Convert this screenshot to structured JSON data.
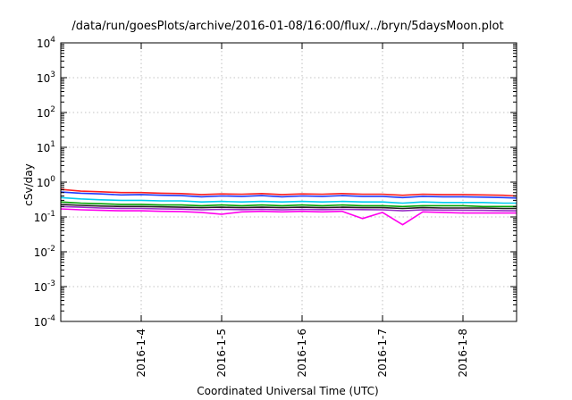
{
  "chart_data": {
    "type": "line",
    "title": "/data/run/goesPlots/archive/2016-01-08/16:00/flux/../bryn/5daysMoon.plot",
    "xlabel": "Coordinated Universal Time (UTC)",
    "ylabel": "cSv/day",
    "yscale": "log",
    "ylim": [
      0.0001,
      10000
    ],
    "y_ticks": [
      {
        "base": "10",
        "exp": "-4",
        "value": 0.0001
      },
      {
        "base": "10",
        "exp": "-3",
        "value": 0.001
      },
      {
        "base": "10",
        "exp": "-2",
        "value": 0.01
      },
      {
        "base": "10",
        "exp": "-1",
        "value": 0.1
      },
      {
        "base": "10",
        "exp": "0",
        "value": 1
      },
      {
        "base": "10",
        "exp": "1",
        "value": 10
      },
      {
        "base": "10",
        "exp": "2",
        "value": 100
      },
      {
        "base": "10",
        "exp": "3",
        "value": 1000
      },
      {
        "base": "10",
        "exp": "4",
        "value": 10000
      }
    ],
    "xlim": [
      "2016-01-03T00:00",
      "2016-01-08T16:00"
    ],
    "x_ticks": [
      "2016-1-4",
      "2016-1-5",
      "2016-1-6",
      "2016-1-7",
      "2016-1-8"
    ],
    "x_tick_values": [
      "2016-01-04T00:00",
      "2016-01-05T00:00",
      "2016-01-06T00:00",
      "2016-01-07T00:00",
      "2016-01-08T00:00"
    ],
    "grid": true,
    "series": [
      {
        "color": "#ff2020",
        "x": [
          "2016-01-03T00:00",
          "2016-01-03T06:00",
          "2016-01-03T12:00",
          "2016-01-03T18:00",
          "2016-01-04T00:00",
          "2016-01-04T06:00",
          "2016-01-04T12:00",
          "2016-01-04T18:00",
          "2016-01-05T00:00",
          "2016-01-05T06:00",
          "2016-01-05T12:00",
          "2016-01-05T18:00",
          "2016-01-06T00:00",
          "2016-01-06T06:00",
          "2016-01-06T12:00",
          "2016-01-06T18:00",
          "2016-01-07T00:00",
          "2016-01-07T06:00",
          "2016-01-07T12:00",
          "2016-01-07T18:00",
          "2016-01-08T00:00",
          "2016-01-08T06:00",
          "2016-01-08T12:00",
          "2016-01-08T16:00"
        ],
        "y": [
          0.62,
          0.55,
          0.53,
          0.5,
          0.5,
          0.48,
          0.47,
          0.44,
          0.46,
          0.45,
          0.47,
          0.44,
          0.46,
          0.45,
          0.47,
          0.45,
          0.45,
          0.42,
          0.45,
          0.44,
          0.44,
          0.43,
          0.42,
          0.4
        ]
      },
      {
        "color": "#1f3cff",
        "x": [
          "2016-01-03T00:00",
          "2016-01-03T06:00",
          "2016-01-03T12:00",
          "2016-01-03T18:00",
          "2016-01-04T00:00",
          "2016-01-04T06:00",
          "2016-01-04T12:00",
          "2016-01-04T18:00",
          "2016-01-05T00:00",
          "2016-01-05T06:00",
          "2016-01-05T12:00",
          "2016-01-05T18:00",
          "2016-01-06T00:00",
          "2016-01-06T06:00",
          "2016-01-06T12:00",
          "2016-01-06T18:00",
          "2016-01-07T00:00",
          "2016-01-07T06:00",
          "2016-01-07T12:00",
          "2016-01-07T18:00",
          "2016-01-08T00:00",
          "2016-01-08T06:00",
          "2016-01-08T12:00",
          "2016-01-08T16:00"
        ],
        "y": [
          0.52,
          0.48,
          0.46,
          0.43,
          0.44,
          0.42,
          0.41,
          0.38,
          0.4,
          0.39,
          0.41,
          0.38,
          0.4,
          0.39,
          0.41,
          0.39,
          0.39,
          0.36,
          0.39,
          0.38,
          0.38,
          0.37,
          0.36,
          0.35
        ]
      },
      {
        "color": "#00ccee",
        "x": [
          "2016-01-03T00:00",
          "2016-01-03T06:00",
          "2016-01-03T12:00",
          "2016-01-03T18:00",
          "2016-01-04T00:00",
          "2016-01-04T06:00",
          "2016-01-04T12:00",
          "2016-01-04T18:00",
          "2016-01-05T00:00",
          "2016-01-05T06:00",
          "2016-01-05T12:00",
          "2016-01-05T18:00",
          "2016-01-06T00:00",
          "2016-01-06T06:00",
          "2016-01-06T12:00",
          "2016-01-06T18:00",
          "2016-01-07T00:00",
          "2016-01-07T06:00",
          "2016-01-07T12:00",
          "2016-01-07T18:00",
          "2016-01-08T00:00",
          "2016-01-08T06:00",
          "2016-01-08T12:00",
          "2016-01-08T16:00"
        ],
        "y": [
          0.36,
          0.33,
          0.31,
          0.3,
          0.3,
          0.29,
          0.29,
          0.27,
          0.28,
          0.27,
          0.28,
          0.27,
          0.28,
          0.27,
          0.28,
          0.27,
          0.27,
          0.25,
          0.27,
          0.26,
          0.26,
          0.26,
          0.25,
          0.25
        ]
      },
      {
        "color": "#00a000",
        "x": [
          "2016-01-03T00:00",
          "2016-01-03T06:00",
          "2016-01-03T12:00",
          "2016-01-03T18:00",
          "2016-01-04T00:00",
          "2016-01-04T06:00",
          "2016-01-04T12:00",
          "2016-01-04T18:00",
          "2016-01-05T00:00",
          "2016-01-05T06:00",
          "2016-01-05T12:00",
          "2016-01-05T18:00",
          "2016-01-06T00:00",
          "2016-01-06T06:00",
          "2016-01-06T12:00",
          "2016-01-06T18:00",
          "2016-01-07T00:00",
          "2016-01-07T06:00",
          "2016-01-07T12:00",
          "2016-01-07T18:00",
          "2016-01-08T00:00",
          "2016-01-08T06:00",
          "2016-01-08T12:00",
          "2016-01-08T16:00"
        ],
        "y": [
          0.27,
          0.25,
          0.24,
          0.23,
          0.23,
          0.22,
          0.22,
          0.21,
          0.22,
          0.21,
          0.22,
          0.21,
          0.22,
          0.21,
          0.22,
          0.21,
          0.21,
          0.2,
          0.21,
          0.21,
          0.21,
          0.2,
          0.2,
          0.2
        ]
      },
      {
        "color": "#202020",
        "x": [
          "2016-01-03T00:00",
          "2016-01-03T06:00",
          "2016-01-03T12:00",
          "2016-01-03T18:00",
          "2016-01-04T00:00",
          "2016-01-04T06:00",
          "2016-01-04T12:00",
          "2016-01-04T18:00",
          "2016-01-05T00:00",
          "2016-01-05T06:00",
          "2016-01-05T12:00",
          "2016-01-05T18:00",
          "2016-01-06T00:00",
          "2016-01-06T06:00",
          "2016-01-06T12:00",
          "2016-01-06T18:00",
          "2016-01-07T00:00",
          "2016-01-07T06:00",
          "2016-01-07T12:00",
          "2016-01-07T18:00",
          "2016-01-08T00:00",
          "2016-01-08T06:00",
          "2016-01-08T12:00",
          "2016-01-08T16:00"
        ],
        "y": [
          0.23,
          0.215,
          0.205,
          0.2,
          0.2,
          0.195,
          0.19,
          0.185,
          0.19,
          0.185,
          0.19,
          0.185,
          0.19,
          0.185,
          0.19,
          0.185,
          0.185,
          0.175,
          0.185,
          0.18,
          0.18,
          0.18,
          0.175,
          0.175
        ]
      },
      {
        "color": "#9b30c8",
        "x": [
          "2016-01-03T00:00",
          "2016-01-03T06:00",
          "2016-01-03T12:00",
          "2016-01-03T18:00",
          "2016-01-04T00:00",
          "2016-01-04T06:00",
          "2016-01-04T12:00",
          "2016-01-04T18:00",
          "2016-01-05T00:00",
          "2016-01-05T06:00",
          "2016-01-05T12:00",
          "2016-01-05T18:00",
          "2016-01-06T00:00",
          "2016-01-06T06:00",
          "2016-01-06T12:00",
          "2016-01-06T18:00",
          "2016-01-07T00:00",
          "2016-01-07T06:00",
          "2016-01-07T12:00",
          "2016-01-07T18:00",
          "2016-01-08T00:00",
          "2016-01-08T06:00",
          "2016-01-08T12:00",
          "2016-01-08T16:00"
        ],
        "y": [
          0.2,
          0.19,
          0.18,
          0.175,
          0.175,
          0.17,
          0.168,
          0.16,
          0.165,
          0.162,
          0.166,
          0.16,
          0.165,
          0.162,
          0.166,
          0.162,
          0.16,
          0.15,
          0.16,
          0.158,
          0.157,
          0.155,
          0.152,
          0.15
        ]
      },
      {
        "color": "#ff00ee",
        "x": [
          "2016-01-03T00:00",
          "2016-01-03T06:00",
          "2016-01-03T12:00",
          "2016-01-03T18:00",
          "2016-01-04T00:00",
          "2016-01-04T06:00",
          "2016-01-04T12:00",
          "2016-01-04T18:00",
          "2016-01-05T00:00",
          "2016-01-05T06:00",
          "2016-01-05T12:00",
          "2016-01-05T18:00",
          "2016-01-06T00:00",
          "2016-01-06T06:00",
          "2016-01-06T12:00",
          "2016-01-06T18:00",
          "2016-01-07T00:00",
          "2016-01-07T06:00",
          "2016-01-07T12:00",
          "2016-01-07T18:00",
          "2016-01-08T00:00",
          "2016-01-08T06:00",
          "2016-01-08T12:00",
          "2016-01-08T16:00"
        ],
        "y": [
          0.17,
          0.16,
          0.155,
          0.15,
          0.15,
          0.145,
          0.143,
          0.135,
          0.12,
          0.14,
          0.145,
          0.14,
          0.145,
          0.14,
          0.145,
          0.09,
          0.135,
          0.06,
          0.14,
          0.135,
          0.13,
          0.13,
          0.13,
          0.13
        ]
      }
    ]
  }
}
